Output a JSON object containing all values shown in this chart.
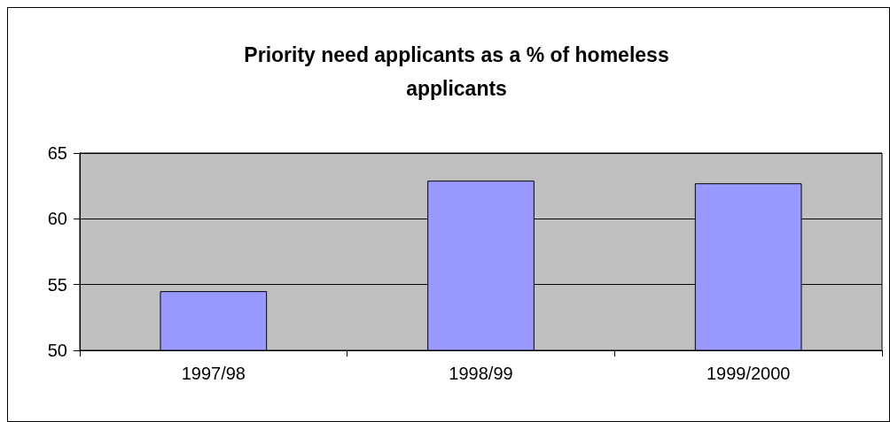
{
  "chart_data": {
    "type": "bar",
    "title": "Priority need applicants as a % of homeless\napplicants",
    "categories": [
      "1997/98",
      "1998/99",
      "1999/2000"
    ],
    "values": [
      54.5,
      62.9,
      62.7
    ],
    "color": "#9999ff",
    "ylim": [
      50,
      65
    ],
    "yticks": [
      50,
      55,
      60,
      65
    ],
    "grid": "y"
  }
}
